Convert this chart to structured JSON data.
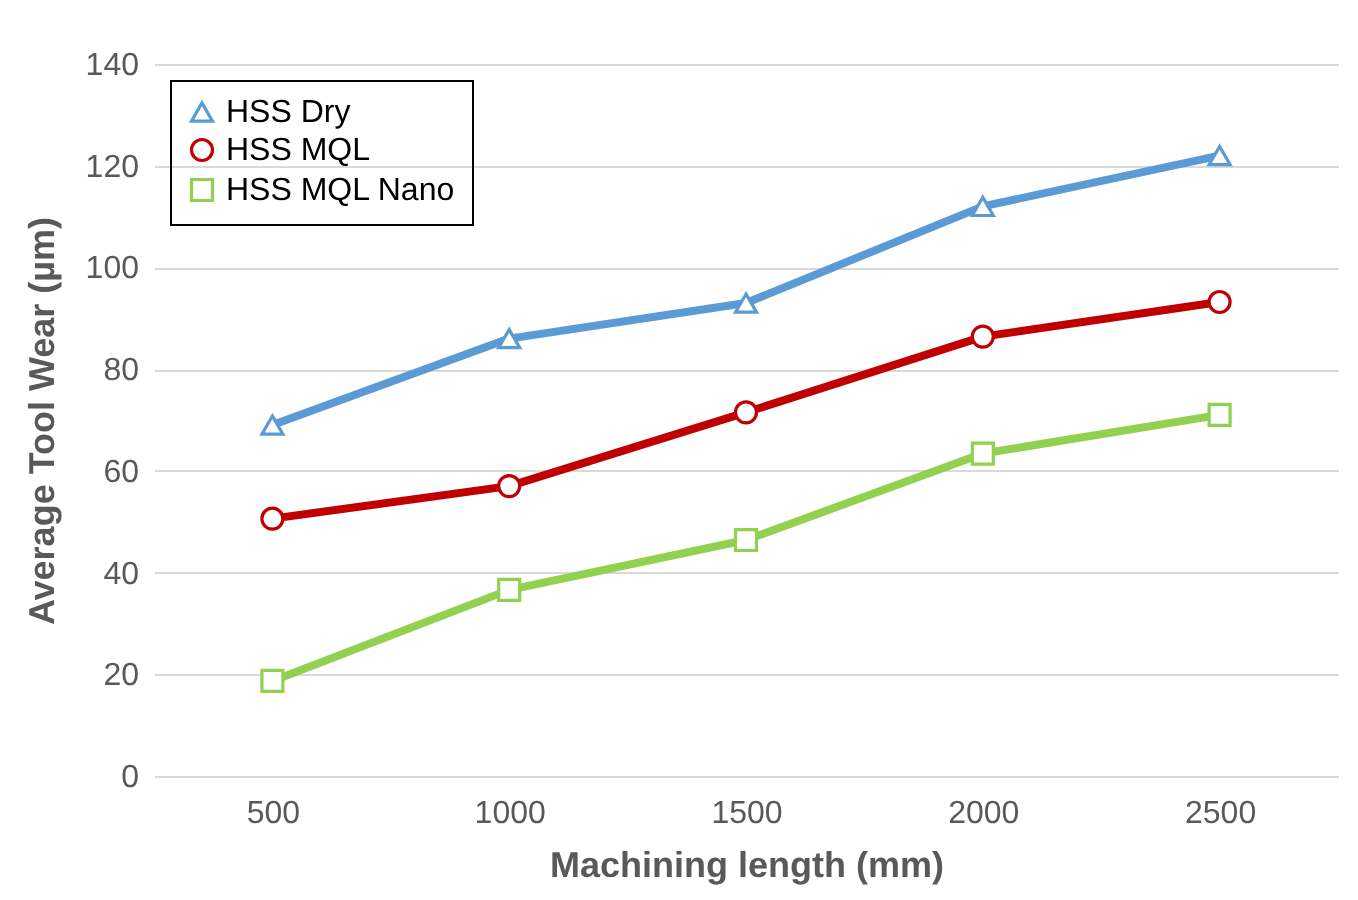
{
  "chart_data": {
    "type": "line",
    "xlabel": "Machining length (mm)",
    "ylabel": "Average Tool Wear (µm)",
    "categories": [
      "500",
      "1000",
      "1500",
      "2000",
      "2500"
    ],
    "series": [
      {
        "name": "HSS Dry",
        "color": "#5b9bd5",
        "marker": "triangle",
        "values": [
          69,
          86,
          93,
          112,
          122
        ]
      },
      {
        "name": "HSS MQL",
        "color": "#c00000",
        "marker": "circle",
        "values": [
          50.6,
          57,
          71.5,
          86.4,
          93.2
        ]
      },
      {
        "name": "HSS MQL Nano",
        "color": "#92d050",
        "marker": "square",
        "values": [
          18.7,
          36.6,
          46.4,
          63.4,
          71
        ]
      }
    ],
    "ylim": [
      0,
      140
    ],
    "yticks": [
      0,
      20,
      40,
      60,
      80,
      100,
      120,
      140
    ],
    "grid": "y",
    "legend": "top left",
    "line_style": "solid"
  }
}
